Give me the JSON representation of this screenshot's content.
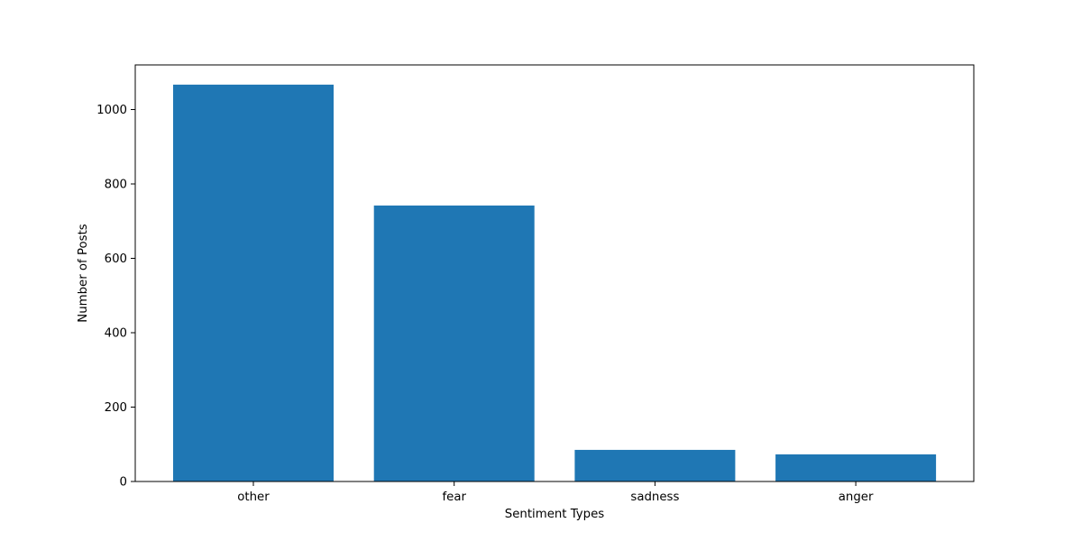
{
  "chart_data": {
    "type": "bar",
    "title": "",
    "xlabel": "Sentiment Types",
    "ylabel": "Number of Posts",
    "categories": [
      "other",
      "fear",
      "sadness",
      "anger"
    ],
    "values": [
      1067,
      742,
      85,
      73
    ],
    "ylim": [
      0,
      1120
    ],
    "yticks": [
      0,
      200,
      400,
      600,
      800,
      1000
    ],
    "grid": false,
    "legend": "none",
    "colors": {
      "bar": "#1f77b4",
      "axes": "#000000",
      "background": "#ffffff"
    }
  }
}
